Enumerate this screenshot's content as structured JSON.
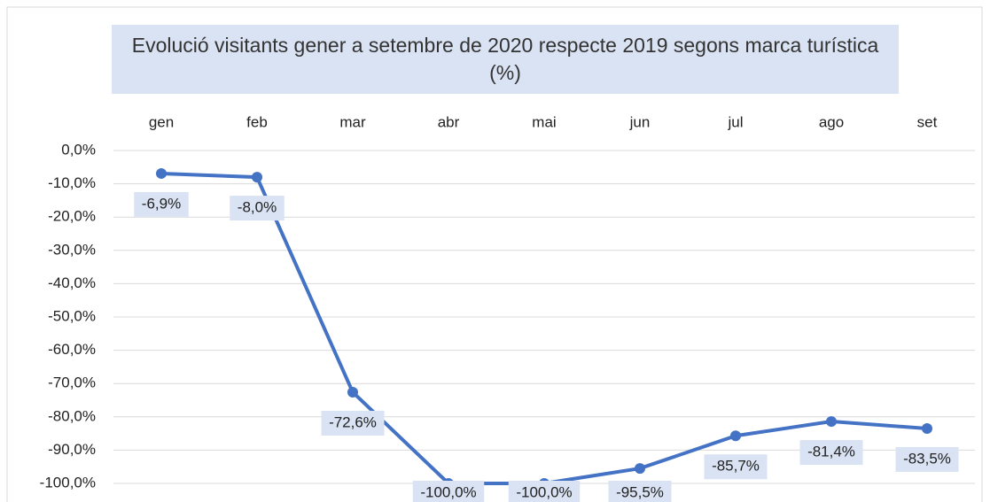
{
  "chart_data": {
    "type": "line",
    "title": "Evolució visitants gener a setembre de 2020 respecte 2019 segons marca turística (%)",
    "categories": [
      "gen",
      "feb",
      "mar",
      "abr",
      "mai",
      "jun",
      "jul",
      "ago",
      "set"
    ],
    "values": [
      -6.9,
      -8.0,
      -72.6,
      -100.0,
      -100.0,
      -95.5,
      -85.7,
      -81.4,
      -83.5
    ],
    "value_labels": [
      "-6,9%",
      "-8,0%",
      "-72,6%",
      "-100,0%",
      "-100,0%",
      "-95,5%",
      "-85,7%",
      "-81,4%",
      "-83,5%"
    ],
    "color": "#4472c4",
    "ylim": [
      -100,
      0
    ],
    "yticks": [
      {
        "value": 0,
        "label": "0,0%"
      },
      {
        "value": -10,
        "label": "-10,0%"
      },
      {
        "value": -20,
        "label": "-20,0%"
      },
      {
        "value": -30,
        "label": "-30,0%"
      },
      {
        "value": -40,
        "label": "-40,0%"
      },
      {
        "value": -50,
        "label": "-50,0%"
      },
      {
        "value": -60,
        "label": "-60,0%"
      },
      {
        "value": -70,
        "label": "-70,0%"
      },
      {
        "value": -80,
        "label": "-80,0%"
      },
      {
        "value": -90,
        "label": "-90,0%"
      },
      {
        "value": -100,
        "label": "-100,0%"
      }
    ],
    "grid": true
  }
}
